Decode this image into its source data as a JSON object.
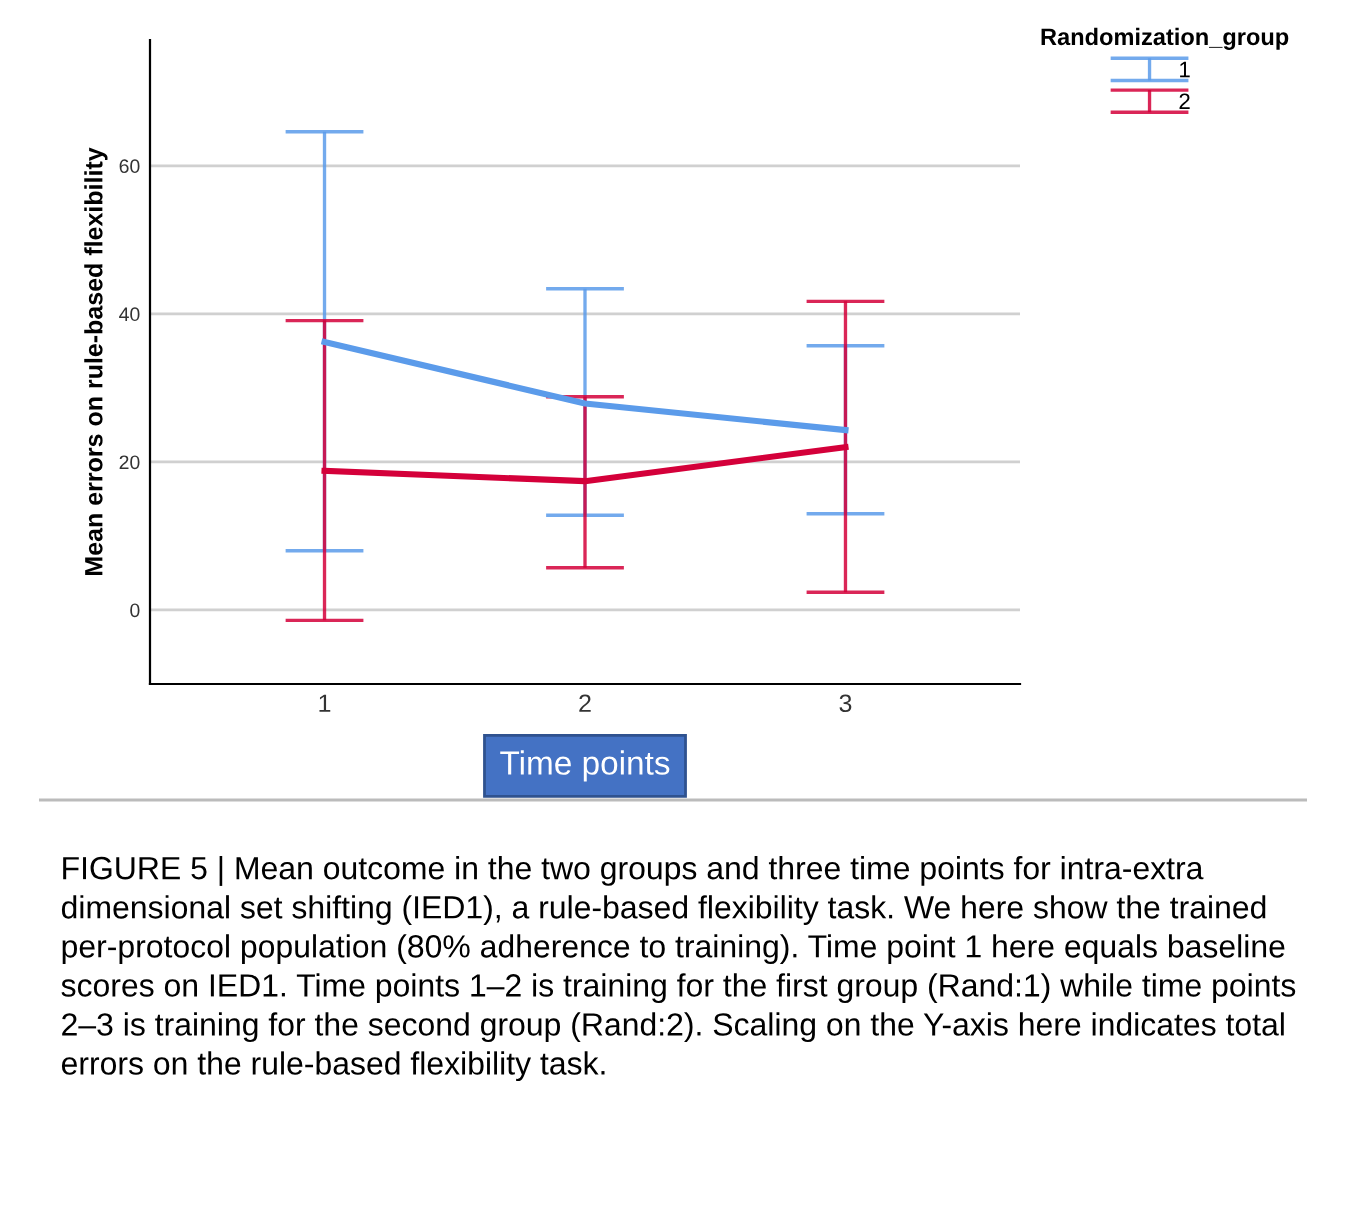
{
  "chart_data": {
    "type": "line",
    "ylabel": "Mean errors on rule-based flexibility",
    "xlabel": "Time points",
    "legend_title": "Randomization_group",
    "categories": [
      "1",
      "2",
      "3"
    ],
    "series": [
      {
        "name": "1",
        "color": "#5b9bea",
        "values": [
          36.2,
          27.9,
          24.3
        ],
        "errors": [
          [
            8.0,
            64.6
          ],
          [
            12.8,
            43.4
          ],
          [
            13.0,
            35.7
          ]
        ]
      },
      {
        "name": "2",
        "color": "#d4003a",
        "values": [
          18.8,
          17.4,
          22.0
        ],
        "errors": [
          [
            -1.4,
            39.1
          ],
          [
            5.7,
            28.8
          ],
          [
            2.4,
            41.7
          ]
        ]
      }
    ],
    "ylim": [
      -10,
      77
    ],
    "yticks": [
      0,
      20,
      40,
      60
    ],
    "grid": "y",
    "legend": "top right",
    "marker": "none",
    "line_style": "solid",
    "annotations": [
      "FIGURE 5 | Mean outcome in the two groups and three time points for intra-extra dimensional set shifting (IED1), a rule-based flexibility task. We here show the trained per-protocol population (80% adherence to training). Time point 1 here equals baseline scores on IED1. Time points 1–2 is training for the first group (Rand:1) while time points 2–3 is training for the second group (Rand:2). Scaling on the Y-axis here indicates total errors on the rule-based flexibility task."
    ]
  }
}
